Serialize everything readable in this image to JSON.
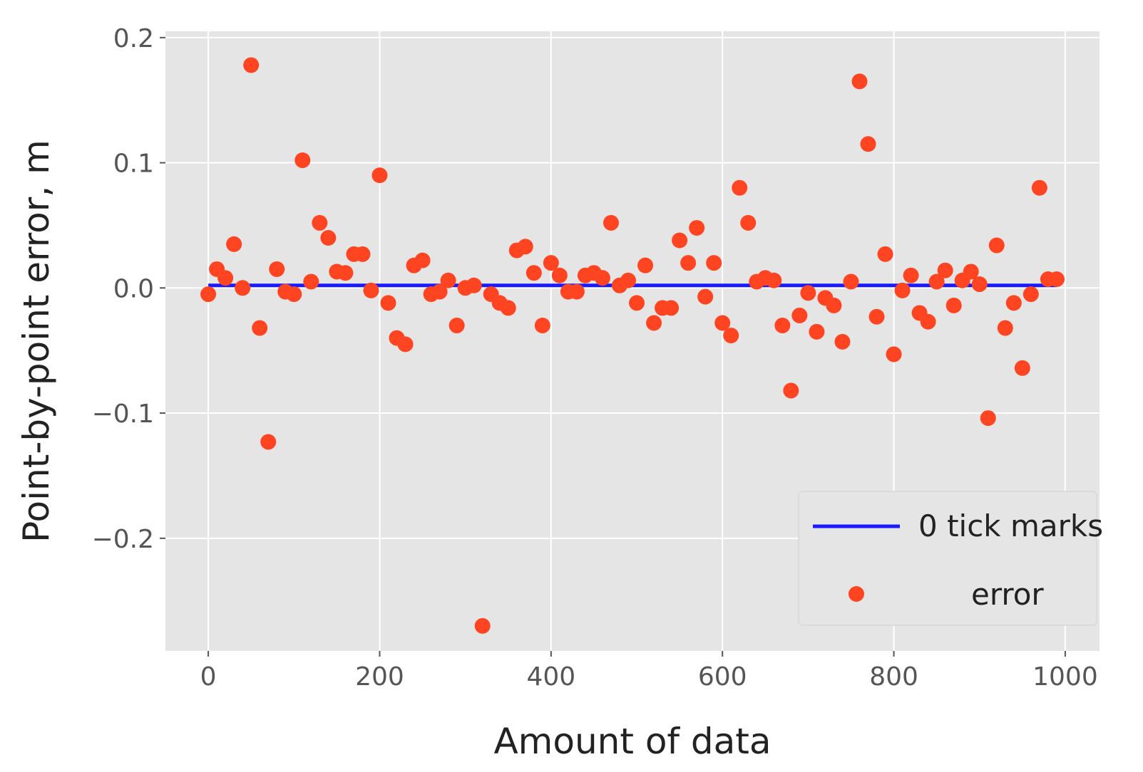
{
  "chart_data": {
    "type": "scatter",
    "title": "",
    "xlabel": "Amount of data",
    "ylabel": "Point-by-point error, m",
    "xlim": [
      -50,
      1040
    ],
    "ylim": [
      -0.29,
      0.205
    ],
    "xticks": [
      0,
      200,
      400,
      600,
      800,
      1000
    ],
    "xtick_labels": [
      "0",
      "200",
      "400",
      "600",
      "800",
      "1000"
    ],
    "yticks": [
      0.2,
      0.1,
      0.0,
      -0.1,
      -0.2
    ],
    "ytick_labels": [
      "0.2",
      "0.1",
      "0.0",
      "−0.1",
      "−0.2"
    ],
    "grid": true,
    "legend_position": "lower-right",
    "colors": {
      "background": "#e5e5e5",
      "grid": "#ffffff",
      "line": "#1a1aff",
      "points": "#ff4422"
    },
    "series": [
      {
        "name": "0 tick marks",
        "kind": "line",
        "x": [
          0,
          990
        ],
        "y": [
          0.002,
          0.002
        ]
      },
      {
        "name": "error",
        "kind": "scatter",
        "x": [
          0,
          10,
          20,
          30,
          40,
          50,
          60,
          70,
          80,
          90,
          100,
          110,
          120,
          130,
          140,
          150,
          160,
          170,
          180,
          190,
          200,
          210,
          220,
          230,
          240,
          250,
          260,
          270,
          280,
          290,
          300,
          310,
          320,
          330,
          340,
          350,
          360,
          370,
          380,
          390,
          400,
          410,
          420,
          430,
          440,
          450,
          460,
          470,
          480,
          490,
          500,
          510,
          520,
          530,
          540,
          550,
          560,
          570,
          580,
          590,
          600,
          610,
          620,
          630,
          640,
          650,
          660,
          670,
          680,
          690,
          700,
          710,
          720,
          730,
          740,
          750,
          760,
          770,
          780,
          790,
          800,
          810,
          820,
          830,
          840,
          850,
          860,
          870,
          880,
          890,
          900,
          910,
          920,
          930,
          940,
          950,
          960,
          970,
          980,
          990
        ],
        "y": [
          -0.005,
          0.015,
          0.008,
          0.035,
          0.0,
          0.178,
          -0.032,
          -0.123,
          0.015,
          -0.003,
          -0.005,
          0.102,
          0.005,
          0.052,
          0.04,
          0.013,
          0.012,
          0.027,
          0.027,
          -0.002,
          0.09,
          -0.012,
          -0.04,
          -0.045,
          0.018,
          0.022,
          -0.005,
          -0.003,
          0.006,
          -0.03,
          0.0,
          0.002,
          -0.27,
          -0.005,
          -0.012,
          -0.016,
          0.03,
          0.033,
          0.012,
          -0.03,
          0.02,
          0.01,
          -0.003,
          -0.003,
          0.01,
          0.012,
          0.008,
          0.052,
          0.002,
          0.006,
          -0.012,
          0.018,
          -0.028,
          -0.016,
          -0.016,
          0.038,
          0.02,
          0.048,
          -0.007,
          0.02,
          -0.028,
          -0.038,
          0.08,
          0.052,
          0.005,
          0.008,
          0.006,
          -0.03,
          -0.082,
          -0.022,
          -0.004,
          -0.035,
          -0.008,
          -0.014,
          -0.043,
          0.005,
          0.165,
          0.115,
          -0.023,
          0.027,
          -0.053,
          -0.002,
          0.01,
          -0.02,
          -0.027,
          0.005,
          0.014,
          -0.014,
          0.006,
          0.013,
          0.003,
          -0.104,
          0.034,
          -0.032,
          -0.012,
          -0.064,
          -0.005,
          0.08,
          0.007,
          0.007
        ]
      }
    ]
  }
}
